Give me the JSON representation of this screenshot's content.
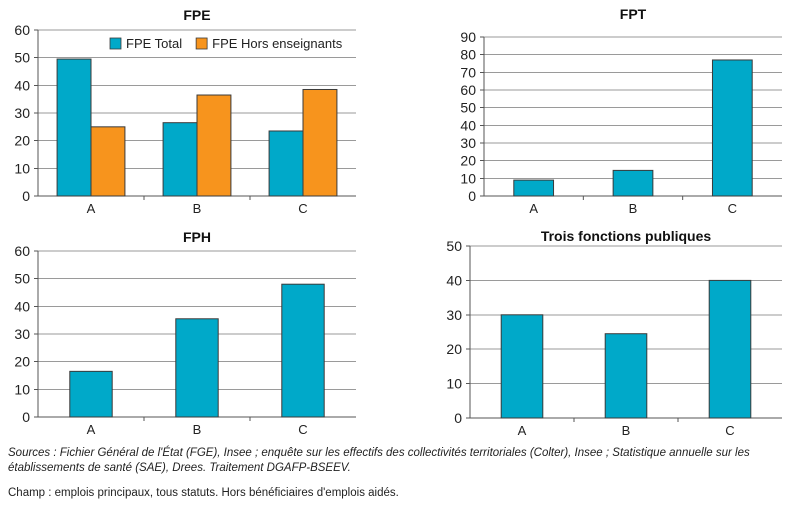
{
  "chart_data": [
    {
      "id": "fpe",
      "type": "bar",
      "title": "FPE",
      "categories": [
        "A",
        "B",
        "C"
      ],
      "series": [
        {
          "name": "FPE Total",
          "values": [
            49.5,
            26.5,
            23.5
          ]
        },
        {
          "name": "FPE Hors enseignants",
          "values": [
            25,
            36.5,
            38.5
          ]
        }
      ],
      "ylim": [
        0,
        60
      ],
      "yticks": [
        0,
        10,
        20,
        30,
        40,
        50,
        60
      ],
      "legend": "top-right",
      "grid": true
    },
    {
      "id": "fpt",
      "type": "bar",
      "title": "FPT",
      "categories": [
        "A",
        "B",
        "C"
      ],
      "series": [
        {
          "values": [
            9,
            14.5,
            77
          ]
        }
      ],
      "ylim": [
        0,
        90
      ],
      "yticks": [
        0,
        10,
        20,
        30,
        40,
        50,
        60,
        70,
        80,
        90
      ],
      "grid": true
    },
    {
      "id": "fph",
      "type": "bar",
      "title": "FPH",
      "categories": [
        "A",
        "B",
        "C"
      ],
      "series": [
        {
          "values": [
            16.5,
            35.5,
            48
          ]
        }
      ],
      "ylim": [
        0,
        60
      ],
      "yticks": [
        0,
        10,
        20,
        30,
        40,
        50,
        60
      ],
      "grid": true
    },
    {
      "id": "trois",
      "type": "bar",
      "title": "Trois fonctions publiques",
      "categories": [
        "A",
        "B",
        "C"
      ],
      "series": [
        {
          "values": [
            30,
            24.5,
            40
          ]
        }
      ],
      "ylim": [
        0,
        50
      ],
      "yticks": [
        0,
        10,
        20,
        30,
        40,
        50
      ],
      "grid": true
    }
  ],
  "colors": {
    "series_1": "#00a9c9",
    "series_2": "#f7941d",
    "grid": "#9a9a9a",
    "axis": "#555555",
    "bar_stroke": "#3a3a3a"
  },
  "notes": {
    "sources": "Sources : Fichier Général de l'État (FGE), Insee ; enquête sur les effectifs des collectivités territoriales (Colter), Insee ; Statistique annuelle sur les établissements de santé (SAE), Drees. Traitement DGAFP-BSEEV.",
    "champ": "Champ : emplois principaux, tous statuts. Hors bénéficiaires d'emplois aidés."
  }
}
